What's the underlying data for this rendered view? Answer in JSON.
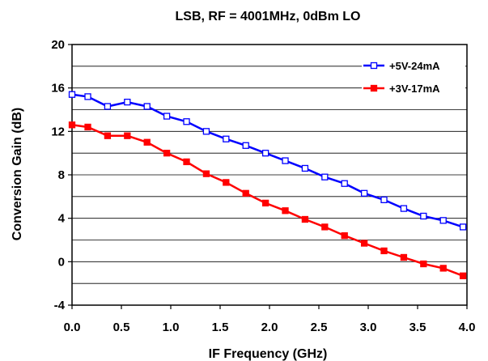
{
  "chart_data": {
    "type": "line",
    "title": "LSB, RF = 4001MHz, 0dBm LO",
    "xlabel": "IF Frequency (GHz)",
    "ylabel": "Conversion Gain (dB)",
    "xlim": [
      0,
      4
    ],
    "ylim": [
      -4,
      20
    ],
    "x_ticks": [
      "0.0",
      "0.5",
      "1.0",
      "1.5",
      "2.0",
      "2.5",
      "3.0",
      "3.5",
      "4.0"
    ],
    "y_ticks": [
      "-4",
      "0",
      "4",
      "8",
      "12",
      "16",
      "20"
    ],
    "grid": "horizontal, every 2 dB",
    "legend_position": "top-right",
    "series": [
      {
        "name": "+5V-24mA",
        "color": "#0000ff",
        "marker": "open-square",
        "x": [
          0.0,
          0.16,
          0.36,
          0.56,
          0.76,
          0.96,
          1.16,
          1.36,
          1.56,
          1.76,
          1.96,
          2.16,
          2.36,
          2.56,
          2.76,
          2.96,
          3.16,
          3.36,
          3.56,
          3.76,
          3.96
        ],
        "y": [
          15.4,
          15.2,
          14.3,
          14.7,
          14.3,
          13.4,
          12.9,
          12.0,
          11.3,
          10.7,
          10.0,
          9.3,
          8.6,
          7.8,
          7.2,
          6.3,
          5.7,
          4.9,
          4.2,
          3.8,
          3.2
        ]
      },
      {
        "name": "+3V-17mA",
        "color": "#ff0000",
        "marker": "filled-square",
        "x": [
          0.0,
          0.16,
          0.36,
          0.56,
          0.76,
          0.96,
          1.16,
          1.36,
          1.56,
          1.76,
          1.96,
          2.16,
          2.36,
          2.56,
          2.76,
          2.96,
          3.16,
          3.36,
          3.56,
          3.76,
          3.96
        ],
        "y": [
          12.6,
          12.4,
          11.6,
          11.6,
          11.0,
          10.0,
          9.2,
          8.1,
          7.3,
          6.3,
          5.4,
          4.7,
          3.9,
          3.2,
          2.4,
          1.7,
          1.0,
          0.4,
          -0.2,
          -0.6,
          -1.3
        ]
      }
    ]
  }
}
